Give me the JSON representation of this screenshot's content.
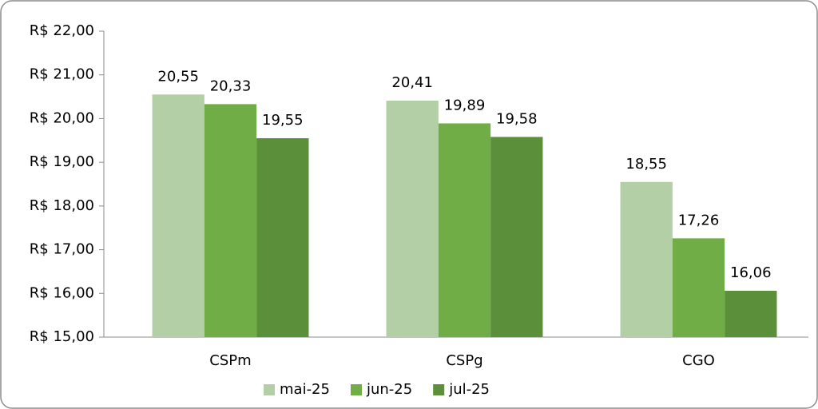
{
  "chart_data": {
    "type": "bar",
    "categories": [
      "CSPm",
      "CSPg",
      "CGO"
    ],
    "series": [
      {
        "name": "mai-25",
        "color": "#b3cfa5",
        "values": [
          20.55,
          20.41,
          18.55
        ],
        "value_labels": [
          "20,55",
          "20,41",
          "18,55"
        ]
      },
      {
        "name": "jun-25",
        "color": "#70ad47",
        "values": [
          20.33,
          19.89,
          17.26
        ],
        "value_labels": [
          "20,33",
          "19,89",
          "17,26"
        ]
      },
      {
        "name": "jul-25",
        "color": "#5b8f3a",
        "values": [
          19.55,
          19.58,
          16.06
        ],
        "value_labels": [
          "19,55",
          "19,58",
          "16,06"
        ]
      }
    ],
    "ylim": [
      15,
      22
    ],
    "yticks": [
      {
        "value": 15,
        "label": "R$ 15,00"
      },
      {
        "value": 16,
        "label": "R$ 16,00"
      },
      {
        "value": 17,
        "label": "R$ 17,00"
      },
      {
        "value": 18,
        "label": "R$ 18,00"
      },
      {
        "value": 19,
        "label": "R$ 19,00"
      },
      {
        "value": 20,
        "label": "R$ 20,00"
      },
      {
        "value": 21,
        "label": "R$ 21,00"
      },
      {
        "value": 22,
        "label": "R$ 22,00"
      }
    ],
    "grid": false,
    "legend": "bottom"
  }
}
